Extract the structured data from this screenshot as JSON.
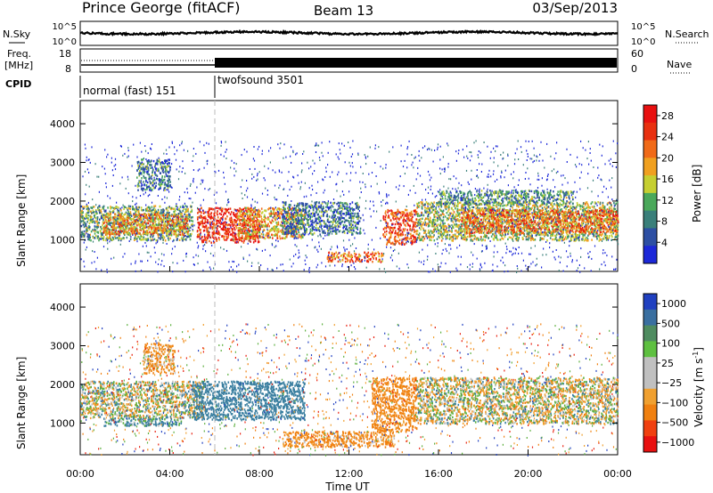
{
  "header": {
    "station": "Prince George (fitACF)",
    "beam": "Beam 13",
    "date": "03/Sep/2013"
  },
  "noise_panel": {
    "left_label": "N.Sky",
    "right_label": "N.Search",
    "yticks_left": [
      "10^5",
      "10^0"
    ],
    "yticks_right": [
      "10^5",
      "10^0"
    ]
  },
  "freq_panel": {
    "left_label_1": "Freq.",
    "left_label_2": "[MHz]",
    "right_label": "Nave",
    "yticks_left": [
      "18",
      "8"
    ],
    "yticks_right": [
      "60",
      "0"
    ]
  },
  "cpid": {
    "label": "CPID",
    "segments": [
      {
        "name": "normal (fast) 151",
        "start_hour": 0,
        "end_hour": 6
      },
      {
        "name": "twofsound 3501",
        "start_hour": 6,
        "end_hour": 24
      }
    ]
  },
  "xaxis": {
    "label": "Time UT",
    "ticks": [
      "00:00",
      "04:00",
      "08:00",
      "12:00",
      "16:00",
      "20:00",
      "00:00"
    ]
  },
  "power_panel": {
    "ylabel": "Slant Range [km]",
    "yticks": [
      "1000",
      "2000",
      "3000",
      "4000"
    ],
    "colorbar_title": "Power [dB]",
    "colorbar_ticks": [
      "4",
      "8",
      "12",
      "16",
      "20",
      "24",
      "28"
    ],
    "colors": [
      "#1c28d8",
      "#2d4fa3",
      "#3a7f7a",
      "#4aa85a",
      "#c6cf31",
      "#f0a020",
      "#f06a18",
      "#e83010",
      "#e81010"
    ]
  },
  "velocity_panel": {
    "ylabel": "Slant Range [km]",
    "yticks": [
      "1000",
      "2000",
      "3000",
      "4000"
    ],
    "colorbar_title": "Velocity [m s",
    "colorbar_title_sup": "-1",
    "colorbar_title_end": "]",
    "colorbar_ticks": [
      "1000",
      "500",
      "100",
      "25",
      "−25",
      "−100",
      "−500",
      "−1000"
    ],
    "colors": [
      "#2040c0",
      "#3a6fa0",
      "#4f8c60",
      "#5ec040",
      "#c0c0c0",
      "#c0c0c0",
      "#f0a030",
      "#f08010",
      "#f04010",
      "#e81010"
    ]
  },
  "chart_data": {
    "type": "heatmap",
    "title": "Prince George (fitACF)  Beam 13  03/Sep/2013",
    "xlabel": "Time UT",
    "ylabel": "Slant Range [km]",
    "xlim_hours": [
      0,
      24
    ],
    "ylim_km": [
      180,
      4600
    ],
    "power_colorbar": {
      "label": "Power [dB]",
      "range": [
        0,
        30
      ],
      "ticks": [
        4,
        8,
        12,
        16,
        20,
        24,
        28
      ]
    },
    "velocity_colorbar": {
      "label": "Velocity [m s^-1]",
      "ticks": [
        1000,
        500,
        100,
        25,
        -25,
        -100,
        -500,
        -1000
      ]
    },
    "power_regions": [
      {
        "t0": 0.0,
        "t1": 5.0,
        "r0": 1000,
        "r1": 1900,
        "power": 12
      },
      {
        "t0": 1.0,
        "t1": 4.8,
        "r0": 1150,
        "r1": 1700,
        "power": 20
      },
      {
        "t0": 2.5,
        "t1": 4.0,
        "r0": 2300,
        "r1": 3100,
        "power": 8
      },
      {
        "t0": 5.2,
        "t1": 8.0,
        "r0": 950,
        "r1": 1850,
        "power": 26
      },
      {
        "t0": 7.0,
        "t1": 10.0,
        "r0": 1050,
        "r1": 1850,
        "power": 18
      },
      {
        "t0": 9.0,
        "t1": 12.5,
        "r0": 1150,
        "r1": 2000,
        "power": 8
      },
      {
        "t0": 11.0,
        "t1": 13.5,
        "r0": 450,
        "r1": 700,
        "power": 22
      },
      {
        "t0": 13.5,
        "t1": 15.0,
        "r0": 900,
        "r1": 1800,
        "power": 24
      },
      {
        "t0": 15.0,
        "t1": 24.0,
        "r0": 1000,
        "r1": 2000,
        "power": 14
      },
      {
        "t0": 17.0,
        "t1": 24.0,
        "r0": 1200,
        "r1": 1800,
        "power": 22
      },
      {
        "t0": 16.0,
        "t1": 22.0,
        "r0": 1950,
        "r1": 2300,
        "power": 10
      }
    ],
    "velocity_regions": [
      {
        "t0": 0.0,
        "t1": 5.5,
        "r0": 1150,
        "r1": 2100,
        "velocity": 0
      },
      {
        "t0": 1.0,
        "t1": 4.5,
        "r0": 950,
        "r1": 1150,
        "velocity": 150
      },
      {
        "t0": 2.8,
        "t1": 4.2,
        "r0": 2300,
        "r1": 3100,
        "velocity": -120
      },
      {
        "t0": 5.0,
        "t1": 10.0,
        "r0": 1100,
        "r1": 2100,
        "velocity": 300
      },
      {
        "t0": 9.0,
        "t1": 14.0,
        "r0": 400,
        "r1": 800,
        "velocity": -150
      },
      {
        "t0": 13.0,
        "t1": 15.0,
        "r0": 800,
        "r1": 2200,
        "velocity": -200
      },
      {
        "t0": 15.0,
        "t1": 24.0,
        "r0": 1000,
        "r1": 2200,
        "velocity": 0
      }
    ]
  }
}
